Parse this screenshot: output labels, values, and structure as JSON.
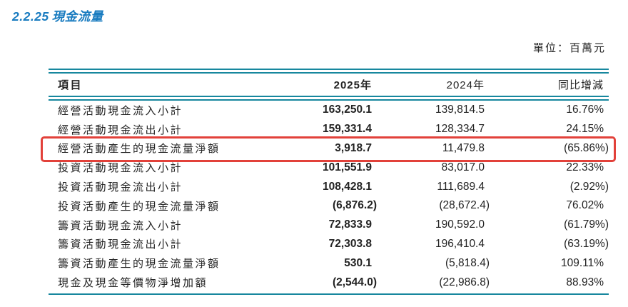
{
  "page": {
    "section_number": "2.2.25",
    "section_title": "現金流量",
    "unit_label": "單位：百萬元"
  },
  "colors": {
    "rule_teal": "#17879e",
    "title_blue": "#1a7cc0",
    "highlight_red": "#e2413a",
    "text": "#232323"
  },
  "table": {
    "headers": {
      "item": "項目",
      "y2025": "2025年",
      "y2024": "2024年",
      "yoy": "同比增減"
    },
    "rows": [
      {
        "item": "經營活動現金流入小計",
        "y2025": "163,250.1",
        "y2024": "139,814.5",
        "yoy": "16.76%",
        "highlighted": false
      },
      {
        "item": "經營活動現金流出小計",
        "y2025": "159,331.4",
        "y2024": "128,334.7",
        "yoy": "24.15%",
        "highlighted": false
      },
      {
        "item": "經營活動產生的現金流量淨額",
        "y2025": "3,918.7",
        "y2024": "11,479.8",
        "yoy": "(65.86%)",
        "highlighted": true
      },
      {
        "item": "投資活動現金流入小計",
        "y2025": "101,551.9",
        "y2024": "83,017.0",
        "yoy": "22.33%",
        "highlighted": false
      },
      {
        "item": "投資活動現金流出小計",
        "y2025": "108,428.1",
        "y2024": "111,689.4",
        "yoy": "(2.92%)",
        "highlighted": false
      },
      {
        "item": "投資活動產生的現金流量淨額",
        "y2025": "(6,876.2)",
        "y2024": "(28,672.4)",
        "yoy": "76.02%",
        "highlighted": false
      },
      {
        "item": "籌資活動現金流入小計",
        "y2025": "72,833.9",
        "y2024": "190,592.0",
        "yoy": "(61.79%)",
        "highlighted": false
      },
      {
        "item": "籌資活動現金流出小計",
        "y2025": "72,303.8",
        "y2024": "196,410.4",
        "yoy": "(63.19%)",
        "highlighted": false
      },
      {
        "item": "籌資活動產生的現金流量淨額",
        "y2025": "530.1",
        "y2024": "(5,818.4)",
        "yoy": "109.11%",
        "highlighted": false
      },
      {
        "item": "現金及現金等價物淨增加額",
        "y2025": "(2,544.0)",
        "y2024": "(22,986.8)",
        "yoy": "88.93%",
        "highlighted": false
      }
    ]
  },
  "annotation": {
    "highlight_row_index": 2
  }
}
